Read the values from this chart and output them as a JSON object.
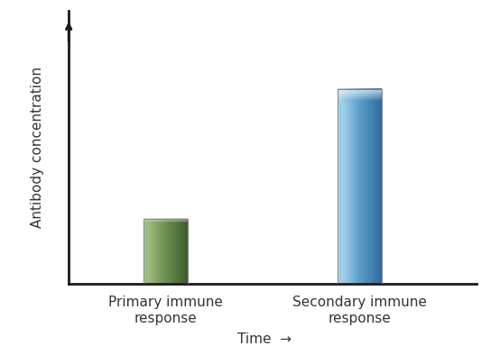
{
  "categories": [
    "Primary immune\nresponse",
    "Secondary immune\nresponse"
  ],
  "values": [
    1.0,
    3.0
  ],
  "bar_colors_main": [
    "#6b8f52",
    "#5b9ec9"
  ],
  "bar_colors_light": [
    "#a0c080",
    "#a8d4f0"
  ],
  "bar_colors_dark": [
    "#3d5c2e",
    "#2e6a9e"
  ],
  "bar_width": 0.45,
  "bar_positions": [
    1,
    3
  ],
  "ylabel": "Antibody concentration",
  "xlabel": "Time",
  "ylim": [
    0,
    4.2
  ],
  "xlim": [
    0,
    4.2
  ],
  "background_color": "#ffffff",
  "text_color": "#333333",
  "axis_color": "#1a1a1a",
  "label_fontsize": 11,
  "tick_label_fontsize": 11
}
